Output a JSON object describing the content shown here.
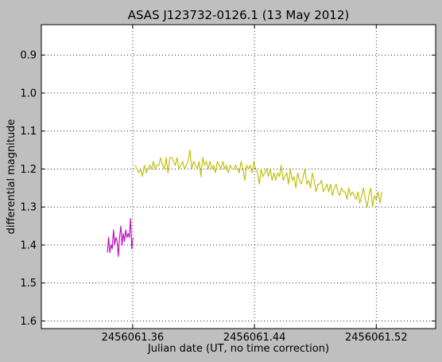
{
  "chart_data": {
    "type": "line",
    "title": "ASAS J123732-0126.1 (13 May 2012)",
    "xlabel": "Julian date (UT, no time correction)",
    "ylabel": "differential magnitude",
    "xlim": [
      2456061.3,
      2456061.559
    ],
    "ylim": [
      1.62,
      0.82
    ],
    "y_inverted": true,
    "grid": true,
    "x_ticks": [
      2456061.36,
      2456061.44,
      2456061.52
    ],
    "x_tick_labels": [
      "2456061.36",
      "2456061.44",
      "2456061.52"
    ],
    "y_ticks": [
      0.9,
      1.0,
      1.1,
      1.2,
      1.3,
      1.4,
      1.5,
      1.6
    ],
    "y_tick_labels": [
      "0.9",
      "1.0",
      "1.1",
      "1.2",
      "1.3",
      "1.4",
      "1.5",
      "1.6"
    ],
    "series": [
      {
        "color": "#c000c0",
        "x": [
          2456061.3434,
          2456061.3442,
          2456061.345,
          2456061.3458,
          2456061.3466,
          2456061.3474,
          2456061.3482,
          2456061.349,
          2456061.3498,
          2456061.3506,
          2456061.3514,
          2456061.3522,
          2456061.353,
          2456061.3538,
          2456061.3546,
          2456061.3554,
          2456061.3562,
          2456061.357,
          2456061.3578,
          2456061.3586,
          2456061.3594,
          2456061.3602
        ],
        "y": [
          1.42,
          1.38,
          1.42,
          1.4,
          1.41,
          1.36,
          1.4,
          1.38,
          1.39,
          1.43,
          1.38,
          1.35,
          1.4,
          1.37,
          1.39,
          1.36,
          1.38,
          1.37,
          1.38,
          1.33,
          1.41,
          1.38
        ]
      },
      {
        "color": "#bcbc00",
        "x": [
          2456061.3616,
          2456061.3628,
          2456061.364,
          2456061.3652,
          2456061.3664,
          2456061.3676,
          2456061.3688,
          2456061.37,
          2456061.3712,
          2456061.3724,
          2456061.3736,
          2456061.3748,
          2456061.376,
          2456061.3772,
          2456061.3784,
          2456061.3796,
          2456061.3808,
          2456061.382,
          2456061.3832,
          2456061.3844,
          2456061.3856,
          2456061.3868,
          2456061.388,
          2456061.3892,
          2456061.3904,
          2456061.3916,
          2456061.3928,
          2456061.394,
          2456061.3952,
          2456061.3964,
          2456061.3976,
          2456061.3988,
          2456061.4,
          2456061.4012,
          2456061.4024,
          2456061.4036,
          2456061.4048,
          2456061.406,
          2456061.4072,
          2456061.4084,
          2456061.4096,
          2456061.4108,
          2456061.412,
          2456061.4132,
          2456061.4144,
          2456061.4156,
          2456061.4168,
          2456061.418,
          2456061.4192,
          2456061.4204,
          2456061.4216,
          2456061.4228,
          2456061.424,
          2456061.4252,
          2456061.4264,
          2456061.4276,
          2456061.4288,
          2456061.43,
          2456061.4312,
          2456061.4324,
          2456061.4336,
          2456061.4348,
          2456061.436,
          2456061.4372,
          2456061.4384,
          2456061.4396,
          2456061.4408,
          2456061.442,
          2456061.4432,
          2456061.4444,
          2456061.4456,
          2456061.4468,
          2456061.448,
          2456061.4492,
          2456061.4504,
          2456061.4516,
          2456061.4528,
          2456061.454,
          2456061.4552,
          2456061.4564,
          2456061.4576,
          2456061.4588,
          2456061.46,
          2456061.4612,
          2456061.4624,
          2456061.4636,
          2456061.4648,
          2456061.466,
          2456061.4672,
          2456061.4684,
          2456061.4696,
          2456061.4708,
          2456061.472,
          2456061.4732,
          2456061.4744,
          2456061.4756,
          2456061.4768,
          2456061.478,
          2456061.4792,
          2456061.4804,
          2456061.4816,
          2456061.4828,
          2456061.484,
          2456061.4852,
          2456061.4864,
          2456061.4876,
          2456061.4888,
          2456061.49,
          2456061.4912,
          2456061.4924,
          2456061.4936,
          2456061.4948,
          2456061.496,
          2456061.4972,
          2456061.4984,
          2456061.4996,
          2456061.5008,
          2456061.502,
          2456061.5032,
          2456061.5044,
          2456061.5056,
          2456061.5068,
          2456061.508,
          2456061.5092,
          2456061.5104,
          2456061.5116,
          2456061.5128,
          2456061.514,
          2456061.5152,
          2456061.5164,
          2456061.5176,
          2456061.5188,
          2456061.52,
          2456061.5212,
          2456061.5224,
          2456061.5236
        ],
        "y": [
          1.19,
          1.2,
          1.21,
          1.2,
          1.22,
          1.19,
          1.21,
          1.2,
          1.19,
          1.2,
          1.18,
          1.2,
          1.19,
          1.19,
          1.17,
          1.19,
          1.2,
          1.17,
          1.21,
          1.17,
          1.17,
          1.18,
          1.19,
          1.17,
          1.2,
          1.19,
          1.18,
          1.2,
          1.19,
          1.18,
          1.15,
          1.2,
          1.18,
          1.19,
          1.2,
          1.18,
          1.22,
          1.17,
          1.19,
          1.18,
          1.2,
          1.18,
          1.2,
          1.19,
          1.21,
          1.18,
          1.19,
          1.2,
          1.18,
          1.2,
          1.19,
          1.21,
          1.19,
          1.2,
          1.2,
          1.19,
          1.2,
          1.21,
          1.18,
          1.2,
          1.23,
          1.19,
          1.2,
          1.19,
          1.21,
          1.18,
          1.2,
          1.21,
          1.24,
          1.2,
          1.22,
          1.21,
          1.2,
          1.22,
          1.2,
          1.23,
          1.21,
          1.23,
          1.21,
          1.22,
          1.19,
          1.23,
          1.22,
          1.21,
          1.24,
          1.2,
          1.23,
          1.22,
          1.25,
          1.21,
          1.23,
          1.24,
          1.22,
          1.2,
          1.24,
          1.23,
          1.25,
          1.21,
          1.23,
          1.26,
          1.24,
          1.24,
          1.23,
          1.26,
          1.25,
          1.24,
          1.26,
          1.24,
          1.27,
          1.25,
          1.24,
          1.26,
          1.27,
          1.25,
          1.26,
          1.26,
          1.28,
          1.25,
          1.27,
          1.26,
          1.27,
          1.28,
          1.26,
          1.29,
          1.27,
          1.25,
          1.28,
          1.3,
          1.27,
          1.25,
          1.3,
          1.27,
          1.28,
          1.26,
          1.29,
          1.26
        ]
      }
    ]
  }
}
